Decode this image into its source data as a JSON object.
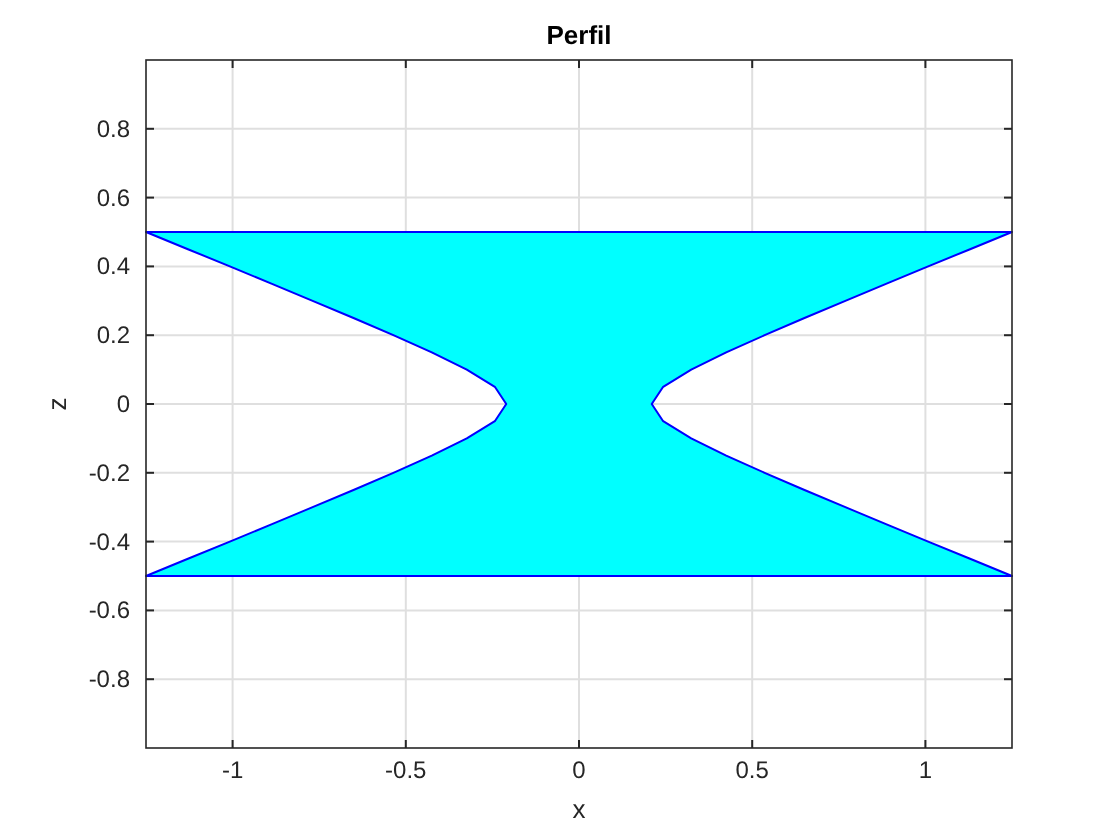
{
  "chart_data": {
    "type": "area",
    "title": "Perfil",
    "xlabel": "x",
    "ylabel": "z",
    "xlim": [
      -1.25,
      1.25
    ],
    "ylim": [
      -1,
      1
    ],
    "xticks": [
      -1,
      -0.5,
      0,
      0.5,
      1
    ],
    "yticks": [
      -0.8,
      -0.6,
      -0.4,
      -0.2,
      0,
      0.2,
      0.4,
      0.6,
      0.8
    ],
    "grid": true,
    "series": [
      {
        "color": "#00ffff",
        "x": [
          -1.25,
          1.25,
          1.129,
          1.008,
          0.888,
          0.769,
          0.651,
          0.536,
          0.425,
          0.324,
          0.243,
          0.21,
          0.243,
          0.324,
          0.425,
          0.536,
          0.651,
          0.769,
          0.888,
          1.008,
          1.129,
          1.25,
          -1.25,
          -1.129,
          -1.008,
          -0.888,
          -0.769,
          -0.651,
          -0.536,
          -0.425,
          -0.324,
          -0.243,
          -0.21,
          -0.243,
          -0.324,
          -0.425,
          -0.536,
          -0.651,
          -0.769,
          -0.888,
          -1.008,
          -1.129,
          -1.25
        ],
        "values": [
          0.5,
          0.5,
          0.45,
          0.4,
          0.35,
          0.3,
          0.25,
          0.2,
          0.15,
          0.1,
          0.05,
          0,
          -0.05,
          -0.1,
          -0.15,
          -0.2,
          -0.25,
          -0.3,
          -0.35,
          -0.4,
          -0.45,
          -0.5,
          -0.5,
          -0.45,
          -0.4,
          -0.35,
          -0.3,
          -0.25,
          -0.2,
          -0.15,
          -0.1,
          -0.05,
          0,
          0.05,
          0.1,
          0.15,
          0.2,
          0.25,
          0.3,
          0.35,
          0.4,
          0.45,
          0.5
        ]
      }
    ]
  }
}
